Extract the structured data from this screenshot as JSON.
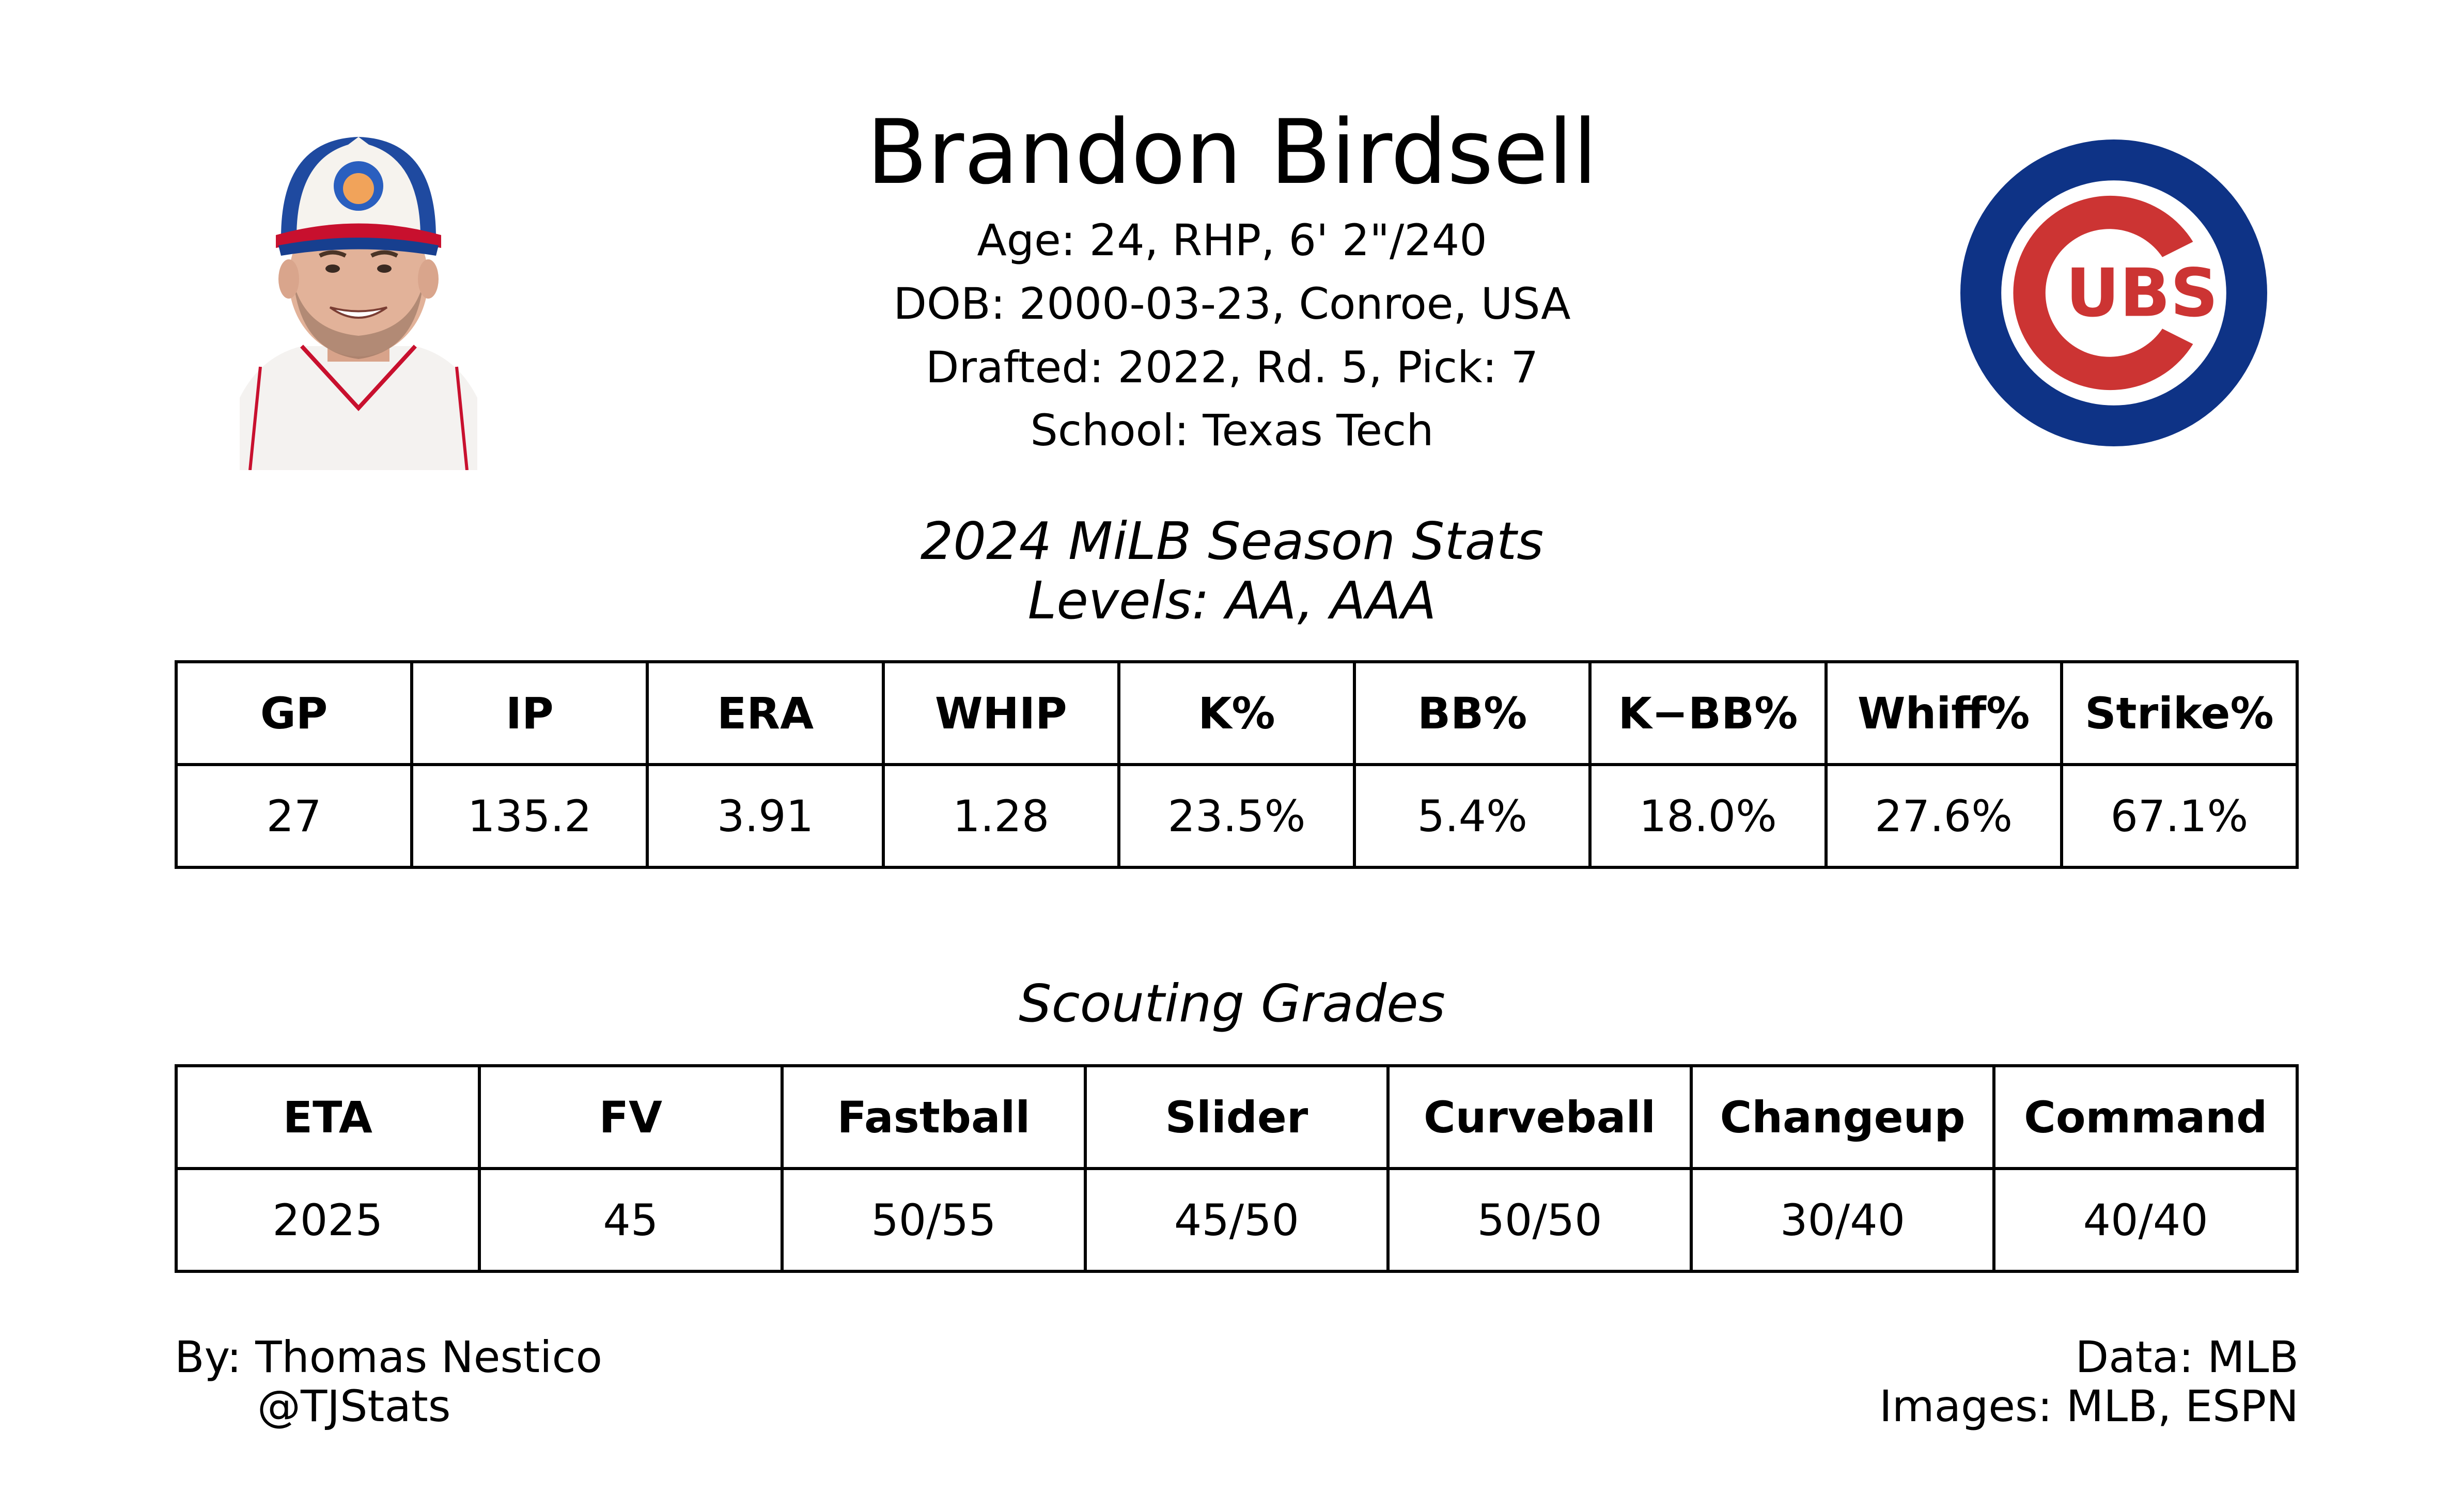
{
  "player": {
    "name": "Brandon Birdsell",
    "age_line": "Age: 24, RHP, 6' 2\"/240",
    "dob_line": "DOB: 2000-03-23, Conroe, USA",
    "draft_line": "Drafted: 2022, Rd. 5, Pick: 7",
    "school_line": "School: Texas Tech"
  },
  "team_logo": {
    "text": "UBS",
    "outer_color": "#0e3386",
    "inner_color": "#cc3433"
  },
  "season": {
    "title": "2024 MiLB Season Stats",
    "levels": "Levels: AA, AAA",
    "headers": [
      "GP",
      "IP",
      "ERA",
      "WHIP",
      "K%",
      "BB%",
      "K−BB%",
      "Whiff%",
      "Strike%"
    ],
    "values": [
      "27",
      "135.2",
      "3.91",
      "1.28",
      "23.5%",
      "5.4%",
      "18.0%",
      "27.6%",
      "67.1%"
    ]
  },
  "grades": {
    "title": "Scouting Grades",
    "headers": [
      "ETA",
      "FV",
      "Fastball",
      "Slider",
      "Curveball",
      "Changeup",
      "Command"
    ],
    "values": [
      "2025",
      "45",
      "50/55",
      "45/50",
      "50/50",
      "30/40",
      "40/40"
    ]
  },
  "footer": {
    "by": "By: Thomas Nestico",
    "handle": "@TJStats",
    "data_source": "Data: MLB",
    "images_source": "Images: MLB, ESPN"
  }
}
